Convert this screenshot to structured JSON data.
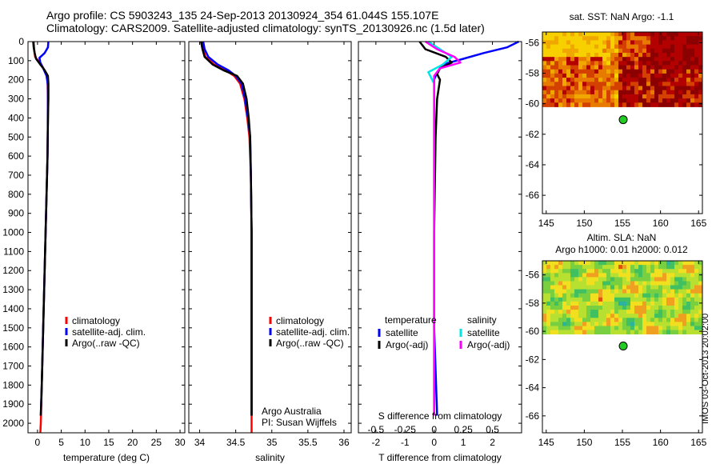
{
  "header": {
    "line1": "Argo profile: CS 5903243_135 24-Sep-2013 20130924_354 61.044S 155.107E",
    "line2": "Climatology: CARS2009. Satellite-adjusted climatology: synTS_20130926.nc (1.5d later)"
  },
  "stamp": "IMOS 03-Oct-2013 20:02:00",
  "colors": {
    "climatology": "#ff0000",
    "satellite": "#0000ff",
    "argo": "#000000",
    "sat_salinity": "#00e5e5",
    "argo_salinity": "#ff00ff"
  },
  "chart_data": [
    {
      "type": "line",
      "panel": "temperature",
      "xlabel": "temperature (deg C)",
      "ylabel": "",
      "xlim": [
        -2,
        31
      ],
      "ylim": [
        2050,
        0
      ],
      "xticks": [
        0,
        5,
        10,
        15,
        20,
        25,
        30
      ],
      "yticks": [
        0,
        100,
        200,
        300,
        400,
        500,
        600,
        700,
        800,
        900,
        1000,
        1100,
        1200,
        1300,
        1400,
        1500,
        1600,
        1700,
        1800,
        1900,
        2000
      ],
      "legend": [
        "climatology",
        "satellite-adj. clim.",
        "Argo(..raw -QC)"
      ],
      "legend_location": "lower-center",
      "series": [
        {
          "name": "climatology",
          "color": "#ff0000",
          "points": [
            [
              -0.8,
              0
            ],
            [
              -0.7,
              40
            ],
            [
              -0.5,
              80
            ],
            [
              0.8,
              120
            ],
            [
              1.7,
              160
            ],
            [
              2.1,
              200
            ],
            [
              2.2,
              300
            ],
            [
              2.2,
              400
            ],
            [
              2.1,
              600
            ],
            [
              1.9,
              800
            ],
            [
              1.7,
              1000
            ],
            [
              1.5,
              1200
            ],
            [
              1.3,
              1400
            ],
            [
              1.1,
              1600
            ],
            [
              0.9,
              1800
            ],
            [
              0.7,
              2000
            ],
            [
              0.6,
              2050
            ]
          ]
        },
        {
          "name": "satellite-adj. clim.",
          "color": "#0000ff",
          "points": [
            [
              2.3,
              0
            ],
            [
              2.2,
              30
            ],
            [
              1.5,
              60
            ],
            [
              0.4,
              85
            ],
            [
              0.6,
              110
            ],
            [
              1.2,
              140
            ],
            [
              1.9,
              180
            ],
            [
              2.2,
              230
            ],
            [
              2.2,
              300
            ],
            [
              2.2,
              400
            ],
            [
              2.1,
              600
            ],
            [
              1.9,
              800
            ],
            [
              1.7,
              1000
            ],
            [
              1.5,
              1200
            ],
            [
              1.3,
              1400
            ],
            [
              1.1,
              1600
            ],
            [
              0.9,
              1800
            ],
            [
              0.7,
              1960
            ]
          ]
        },
        {
          "name": "Argo(..raw -QC)",
          "color": "#000000",
          "points": [
            [
              -0.9,
              0
            ],
            [
              -0.8,
              30
            ],
            [
              -0.6,
              60
            ],
            [
              -0.3,
              90
            ],
            [
              0.6,
              120
            ],
            [
              1.5,
              150
            ],
            [
              2.2,
              180
            ],
            [
              2.3,
              220
            ],
            [
              2.3,
              300
            ],
            [
              2.2,
              400
            ],
            [
              2.1,
              600
            ],
            [
              1.9,
              800
            ],
            [
              1.7,
              1000
            ],
            [
              1.5,
              1200
            ],
            [
              1.3,
              1400
            ],
            [
              1.1,
              1600
            ],
            [
              0.9,
              1800
            ],
            [
              0.7,
              1960
            ]
          ]
        }
      ]
    },
    {
      "type": "line",
      "panel": "salinity",
      "xlabel": "salinity",
      "ylabel": "",
      "xlim": [
        33.85,
        36.1
      ],
      "ylim": [
        2050,
        0
      ],
      "xticks": [
        34,
        34.5,
        35,
        35.5,
        36
      ],
      "legend": [
        "climatology",
        "satellite-adj. clim.",
        "Argo(..raw -QC)"
      ],
      "legend_location": "lower-center",
      "annotations": [
        "Argo Australia",
        "PI: Susan Wijffels"
      ],
      "series": [
        {
          "name": "climatology",
          "color": "#ff0000",
          "points": [
            [
              34.04,
              0
            ],
            [
              34.05,
              40
            ],
            [
              34.08,
              80
            ],
            [
              34.2,
              120
            ],
            [
              34.36,
              150
            ],
            [
              34.48,
              180
            ],
            [
              34.56,
              220
            ],
            [
              34.62,
              300
            ],
            [
              34.66,
              400
            ],
            [
              34.69,
              500
            ],
            [
              34.71,
              700
            ],
            [
              34.72,
              1000
            ],
            [
              34.72,
              1500
            ],
            [
              34.72,
              2050
            ]
          ]
        },
        {
          "name": "satellite-adj. clim.",
          "color": "#0000ff",
          "points": [
            [
              34.05,
              0
            ],
            [
              34.07,
              40
            ],
            [
              34.12,
              80
            ],
            [
              34.25,
              120
            ],
            [
              34.4,
              150
            ],
            [
              34.5,
              180
            ],
            [
              34.58,
              220
            ],
            [
              34.63,
              300
            ],
            [
              34.67,
              400
            ],
            [
              34.7,
              500
            ],
            [
              34.71,
              700
            ],
            [
              34.72,
              1000
            ],
            [
              34.72,
              1500
            ],
            [
              34.72,
              1960
            ]
          ]
        },
        {
          "name": "Argo(..raw -QC)",
          "color": "#000000",
          "points": [
            [
              34.02,
              0
            ],
            [
              34.04,
              40
            ],
            [
              34.07,
              80
            ],
            [
              34.18,
              120
            ],
            [
              34.33,
              150
            ],
            [
              34.52,
              180
            ],
            [
              34.6,
              220
            ],
            [
              34.65,
              300
            ],
            [
              34.68,
              400
            ],
            [
              34.7,
              500
            ],
            [
              34.71,
              700
            ],
            [
              34.72,
              1000
            ],
            [
              34.72,
              1500
            ],
            [
              34.72,
              1960
            ]
          ]
        }
      ]
    },
    {
      "type": "line",
      "panel": "difference",
      "xlabel": "T difference from climatology",
      "top_xlabel": "S difference from climatology",
      "xlim": [
        -2.6,
        3.0
      ],
      "ylim": [
        2050,
        0
      ],
      "xticks": [
        -2,
        -1,
        0,
        1,
        2
      ],
      "top_xtick_labels": [
        "-0.5",
        "-0.25",
        "0",
        "0.25",
        "0.5"
      ],
      "top_xtick_positions": [
        -2,
        -1,
        0,
        1,
        2
      ],
      "legend_headers": [
        "temperature",
        "salinity"
      ],
      "legend": [
        "satellite",
        "Argo(-adj)",
        "satellite",
        "Argo(-adj)"
      ],
      "legend_location": "lower-center",
      "series": [
        {
          "name": "satellite",
          "group": "temperature",
          "color": "#0000ff",
          "points": [
            [
              2.9,
              0
            ],
            [
              2.5,
              30
            ],
            [
              1.7,
              60
            ],
            [
              1.0,
              90
            ],
            [
              0.3,
              120
            ],
            [
              0.1,
              160
            ],
            [
              0.0,
              200
            ],
            [
              0.0,
              400
            ],
            [
              0.0,
              1000
            ],
            [
              0.0,
              1500
            ],
            [
              0.1,
              1960
            ]
          ]
        },
        {
          "name": "Argo(-adj)",
          "group": "temperature",
          "color": "#000000",
          "points": [
            [
              -0.5,
              0
            ],
            [
              -0.3,
              40
            ],
            [
              0.4,
              80
            ],
            [
              0.6,
              110
            ],
            [
              0.2,
              140
            ],
            [
              0.1,
              170
            ],
            [
              0.2,
              200
            ],
            [
              0.1,
              300
            ],
            [
              0.05,
              500
            ],
            [
              0.0,
              1000
            ],
            [
              0.0,
              1960
            ]
          ]
        },
        {
          "name": "satellite",
          "group": "salinity",
          "color": "#00e5e5",
          "points": [
            [
              -0.2,
              0
            ],
            [
              0.2,
              40
            ],
            [
              0.6,
              80
            ],
            [
              0.3,
              120
            ],
            [
              -0.2,
              160
            ],
            [
              0.0,
              220
            ],
            [
              0.0,
              400
            ],
            [
              0.0,
              1000
            ],
            [
              0.0,
              1960
            ]
          ]
        },
        {
          "name": "Argo(-adj)",
          "group": "salinity",
          "color": "#ff00ff",
          "points": [
            [
              -0.3,
              0
            ],
            [
              0.1,
              40
            ],
            [
              0.7,
              80
            ],
            [
              0.9,
              110
            ],
            [
              0.2,
              140
            ],
            [
              0.0,
              180
            ],
            [
              0.0,
              400
            ],
            [
              0.0,
              1000
            ],
            [
              0.0,
              1960
            ]
          ]
        }
      ]
    },
    {
      "type": "heatmap",
      "panel": "sst_map",
      "title": "sat. SST: NaN Argo: -1.1",
      "xlim": [
        144.5,
        165.5
      ],
      "ylim": [
        -67.2,
        -55.3
      ],
      "xticks": [
        145,
        150,
        155,
        160,
        165
      ],
      "yticks": [
        -56,
        -58,
        -60,
        -62,
        -64,
        -66
      ],
      "data_extent_lat": [
        -60.2,
        -55.3
      ],
      "argo_location": {
        "lon": 155.107,
        "lat": -61.044
      },
      "palette": [
        "#8b0000",
        "#b30000",
        "#d44000",
        "#e87a00",
        "#f0a800",
        "#f8d000"
      ]
    },
    {
      "type": "heatmap",
      "panel": "sla_map",
      "title": "Altim. SLA: NaN",
      "subtitle": "Argo h1000: 0.01 h2000: 0.012",
      "xlim": [
        144.5,
        165.5
      ],
      "ylim": [
        -67.2,
        -55.0
      ],
      "xticks": [
        145,
        150,
        155,
        160,
        165
      ],
      "yticks": [
        -56,
        -58,
        -60,
        -62,
        -64,
        -66
      ],
      "data_extent_lat": [
        -60.2,
        -55.0
      ],
      "argo_location": {
        "lon": 155.107,
        "lat": -61.044
      },
      "palette": [
        "#2bb3a0",
        "#40c060",
        "#78d040",
        "#b8e030",
        "#f0e020",
        "#f0a020",
        "#e05010"
      ]
    }
  ]
}
